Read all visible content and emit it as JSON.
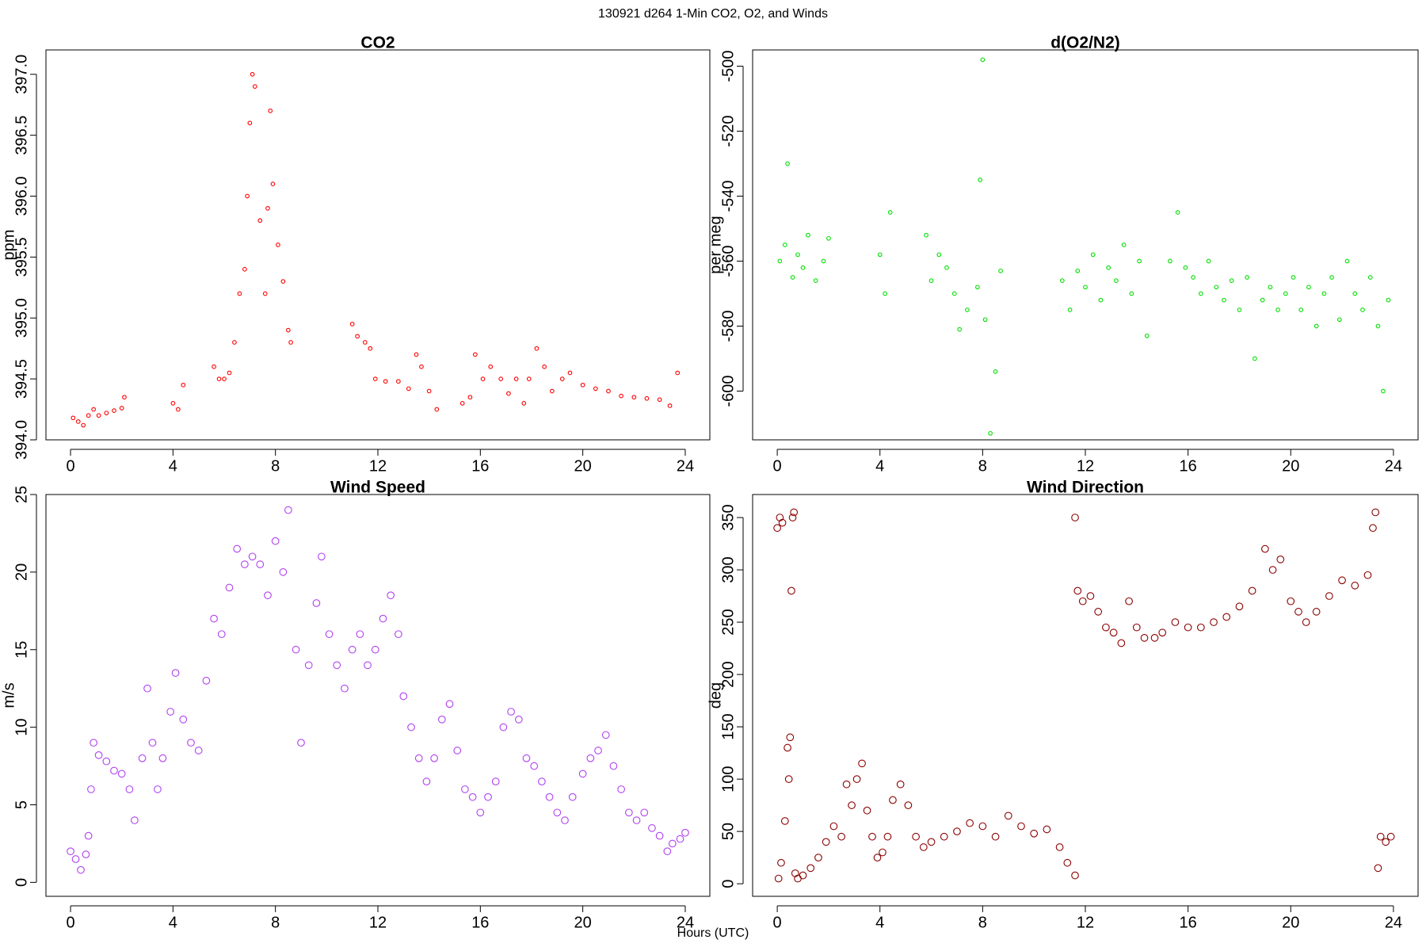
{
  "title": "130921   d264   1-Min CO2, O2, and Winds",
  "x_label": "Hours (UTC)",
  "chart_data": [
    {
      "type": "scatter",
      "title": "CO2",
      "y_label": "ppm",
      "color": "#ff0000",
      "x": [
        0.1,
        0.3,
        0.5,
        0.7,
        0.9,
        1.1,
        1.4,
        1.7,
        2.0,
        2.1,
        4.0,
        4.2,
        4.4,
        5.6,
        5.8,
        6.0,
        6.2,
        6.4,
        6.6,
        6.8,
        6.9,
        7.0,
        7.1,
        7.2,
        7.4,
        7.6,
        7.7,
        7.8,
        7.9,
        8.1,
        8.3,
        8.5,
        8.6,
        11.0,
        11.2,
        11.5,
        11.7,
        11.9,
        12.3,
        12.8,
        13.2,
        13.5,
        13.7,
        14.0,
        14.3,
        15.3,
        15.6,
        15.8,
        16.1,
        16.4,
        16.8,
        17.1,
        17.4,
        17.7,
        17.9,
        18.2,
        18.5,
        18.8,
        19.2,
        19.5,
        20.0,
        20.5,
        21.0,
        21.5,
        22.0,
        22.5,
        23.0,
        23.4,
        23.7
      ],
      "values": [
        394.18,
        394.15,
        394.12,
        394.2,
        394.25,
        394.2,
        394.22,
        394.24,
        394.26,
        394.35,
        394.3,
        394.25,
        394.45,
        394.6,
        394.5,
        394.5,
        394.55,
        394.8,
        395.2,
        395.4,
        396.0,
        396.6,
        397.0,
        396.9,
        395.8,
        395.2,
        395.9,
        396.7,
        396.1,
        395.6,
        395.3,
        394.9,
        394.8,
        394.95,
        394.85,
        394.8,
        394.75,
        394.5,
        394.48,
        394.48,
        394.42,
        394.7,
        394.6,
        394.4,
        394.25,
        394.3,
        394.35,
        394.7,
        394.5,
        394.6,
        394.5,
        394.38,
        394.5,
        394.3,
        394.5,
        394.75,
        394.6,
        394.4,
        394.5,
        394.55,
        394.45,
        394.42,
        394.4,
        394.36,
        394.35,
        394.34,
        394.33,
        394.28,
        394.55
      ],
      "xlim": [
        -0.96,
        24.96
      ],
      "xticks": [
        0,
        4,
        8,
        12,
        16,
        20,
        24
      ],
      "ylim": [
        394.0,
        397.2
      ],
      "yticks": [
        {
          "value": 394,
          "label": "394.0"
        },
        394.5,
        {
          "value": 395,
          "label": "395.0"
        },
        395.5,
        {
          "value": 396,
          "label": "396.0"
        },
        396.5,
        {
          "value": 397,
          "label": "397.0"
        }
      ]
    },
    {
      "type": "scatter",
      "title": "d(O2/N2)",
      "y_label": "per meg",
      "color": "#00e000",
      "x": [
        0.1,
        0.3,
        0.4,
        0.6,
        0.8,
        1.0,
        1.2,
        1.5,
        1.8,
        2.0,
        4.0,
        4.2,
        4.4,
        5.8,
        6.0,
        6.3,
        6.6,
        6.9,
        7.1,
        7.4,
        7.8,
        7.9,
        8.0,
        8.1,
        8.3,
        8.5,
        8.7,
        11.1,
        11.4,
        11.7,
        12.0,
        12.3,
        12.6,
        12.9,
        13.2,
        13.5,
        13.8,
        14.1,
        14.4,
        15.3,
        15.6,
        15.9,
        16.2,
        16.5,
        16.8,
        17.1,
        17.4,
        17.7,
        18.0,
        18.3,
        18.6,
        18.9,
        19.2,
        19.5,
        19.8,
        20.1,
        20.4,
        20.7,
        21.0,
        21.3,
        21.6,
        21.9,
        22.2,
        22.5,
        22.8,
        23.1,
        23.4,
        23.6,
        23.8
      ],
      "values": [
        -560,
        -555,
        -530,
        -565,
        -558,
        -562,
        -552,
        -566,
        -560,
        -553,
        -558,
        -570,
        -545,
        -552,
        -566,
        -558,
        -562,
        -570,
        -581,
        -575,
        -568,
        -535,
        -498,
        -578,
        -613,
        -594,
        -563,
        -566,
        -575,
        -563,
        -568,
        -558,
        -572,
        -562,
        -566,
        -555,
        -570,
        -560,
        -583,
        -560,
        -545,
        -562,
        -565,
        -570,
        -560,
        -568,
        -572,
        -566,
        -575,
        -565,
        -590,
        -572,
        -568,
        -575,
        -570,
        -565,
        -575,
        -568,
        -580,
        -570,
        -565,
        -578,
        -560,
        -570,
        -575,
        -565,
        -580,
        -600,
        -572
      ],
      "xlim": [
        -0.96,
        24.96
      ],
      "xticks": [
        0,
        4,
        8,
        12,
        16,
        20,
        24
      ],
      "ylim": [
        -615,
        -495
      ],
      "yticks": [
        -600,
        -580,
        -560,
        -540,
        -520,
        -500
      ]
    },
    {
      "type": "scatter",
      "title": "Wind Speed",
      "y_label": "m/s",
      "color": "#b040f0",
      "x": [
        0,
        0.2,
        0.4,
        0.6,
        0.7,
        0.8,
        0.9,
        1.1,
        1.4,
        1.7,
        2.0,
        2.3,
        2.5,
        2.8,
        3.0,
        3.2,
        3.4,
        3.6,
        3.9,
        4.1,
        4.4,
        4.7,
        5.0,
        5.3,
        5.6,
        5.9,
        6.2,
        6.5,
        6.8,
        7.1,
        7.4,
        7.7,
        8.0,
        8.3,
        8.5,
        8.8,
        9.0,
        9.3,
        9.6,
        9.8,
        10.1,
        10.4,
        10.7,
        11.0,
        11.3,
        11.6,
        11.9,
        12.2,
        12.5,
        12.8,
        13.0,
        13.3,
        13.6,
        13.9,
        14.2,
        14.5,
        14.8,
        15.1,
        15.4,
        15.7,
        16.0,
        16.3,
        16.6,
        16.9,
        17.2,
        17.5,
        17.8,
        18.1,
        18.4,
        18.7,
        19.0,
        19.3,
        19.6,
        20.0,
        20.3,
        20.6,
        20.9,
        21.2,
        21.5,
        21.8,
        22.1,
        22.4,
        22.7,
        23.0,
        23.3,
        23.5,
        23.8,
        24.0
      ],
      "values": [
        2,
        1.5,
        0.8,
        1.8,
        3,
        6,
        9,
        8.2,
        7.8,
        7.2,
        7,
        6,
        4,
        8,
        12.5,
        9,
        6,
        8,
        11,
        13.5,
        10.5,
        9,
        8.5,
        13,
        17,
        16,
        19,
        21.5,
        20.5,
        21,
        20.5,
        18.5,
        22,
        20,
        24,
        15,
        9,
        14,
        18,
        21,
        16,
        14,
        12.5,
        15,
        16,
        14,
        15,
        17,
        18.5,
        16,
        12,
        10,
        8,
        6.5,
        8,
        10.5,
        11.5,
        8.5,
        6,
        5.5,
        4.5,
        5.5,
        6.5,
        10,
        11,
        10.5,
        8,
        7.5,
        6.5,
        5.5,
        4.5,
        4,
        5.5,
        7,
        8,
        8.5,
        9.5,
        7.5,
        6,
        4.5,
        4,
        4.5,
        3.5,
        3,
        2,
        2.5,
        2.8,
        3.2
      ],
      "xlim": [
        -0.96,
        24.96
      ],
      "xticks": [
        0,
        4,
        8,
        12,
        16,
        20,
        24
      ],
      "ylim": [
        -0.9,
        25
      ],
      "yticks": [
        0,
        5,
        10,
        15,
        20,
        25
      ]
    },
    {
      "type": "scatter",
      "title": "Wind Direction",
      "y_label": "deg",
      "color": "#8b0000",
      "x": [
        0,
        0.1,
        0.2,
        0.05,
        0.15,
        0.3,
        0.4,
        0.45,
        0.5,
        0.55,
        0.6,
        0.65,
        0.7,
        0.8,
        1.0,
        1.3,
        1.6,
        1.9,
        2.2,
        2.5,
        2.7,
        2.9,
        3.1,
        3.3,
        3.5,
        3.7,
        3.9,
        4.1,
        4.3,
        4.5,
        4.8,
        5.1,
        5.4,
        5.7,
        6.0,
        6.5,
        7.0,
        7.5,
        8.0,
        8.5,
        9.0,
        9.5,
        10.0,
        10.5,
        11.0,
        11.3,
        11.6,
        11.6,
        11.7,
        11.9,
        12.2,
        12.5,
        12.8,
        13.1,
        13.4,
        13.7,
        14.0,
        14.3,
        14.7,
        15.0,
        15.5,
        16.0,
        16.5,
        17.0,
        17.5,
        18.0,
        18.5,
        19.0,
        19.3,
        19.6,
        20.0,
        20.3,
        20.6,
        21.0,
        21.5,
        22.0,
        22.5,
        23.0,
        23.2,
        23.3,
        23.4,
        23.5,
        23.7,
        23.9
      ],
      "values": [
        340,
        350,
        345,
        5,
        20,
        60,
        130,
        100,
        140,
        280,
        350,
        355,
        10,
        5,
        8,
        15,
        25,
        40,
        55,
        45,
        95,
        75,
        100,
        115,
        70,
        45,
        25,
        30,
        45,
        80,
        95,
        75,
        45,
        35,
        40,
        45,
        50,
        58,
        55,
        45,
        65,
        55,
        48,
        52,
        35,
        20,
        8,
        350,
        280,
        270,
        275,
        260,
        245,
        240,
        230,
        270,
        245,
        235,
        235,
        240,
        250,
        245,
        245,
        250,
        255,
        265,
        280,
        320,
        300,
        310,
        270,
        260,
        250,
        260,
        275,
        290,
        285,
        295,
        340,
        355,
        15,
        45,
        40,
        45
      ],
      "xlim": [
        -0.96,
        24.96
      ],
      "xticks": [
        0,
        4,
        8,
        12,
        16,
        20,
        24
      ],
      "ylim": [
        -12,
        372
      ],
      "yticks": [
        0,
        50,
        100,
        150,
        200,
        250,
        300,
        350
      ]
    }
  ]
}
